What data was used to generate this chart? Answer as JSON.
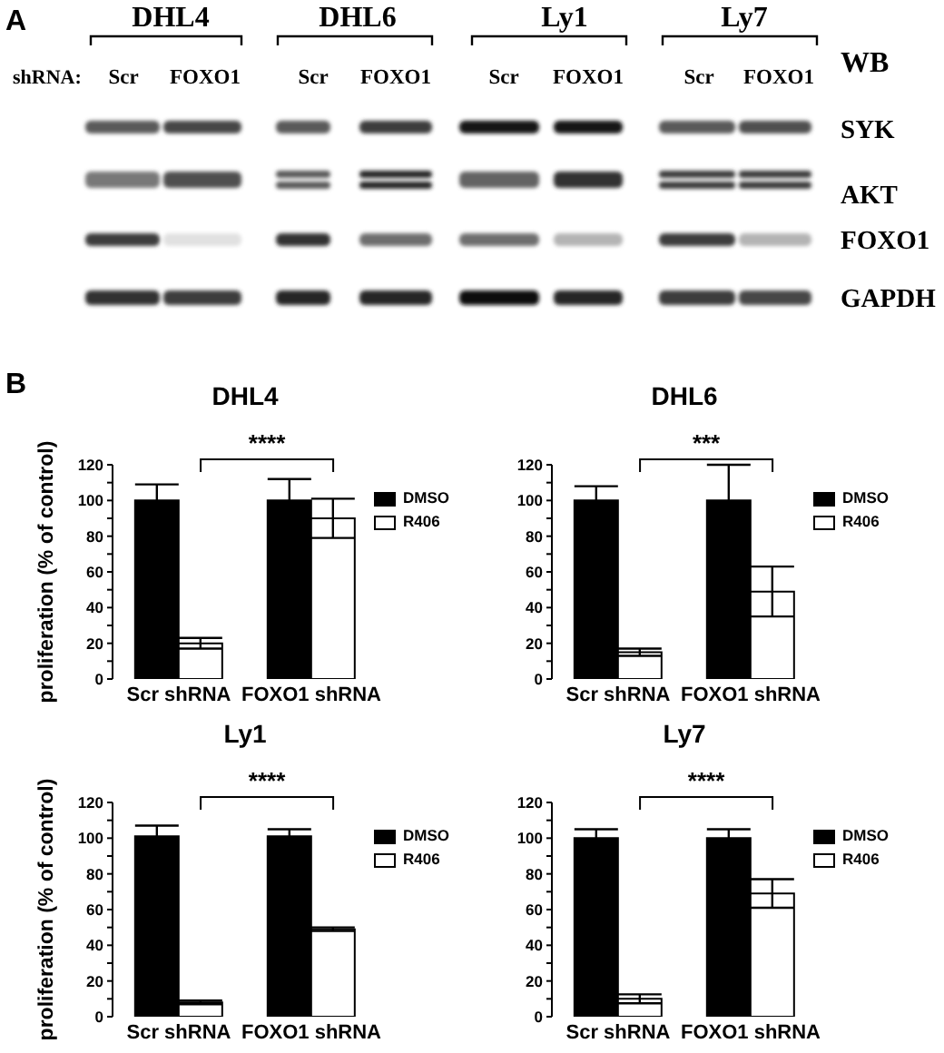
{
  "chart_data": [
    {
      "type": "other",
      "annotations": [
        "A",
        "DHL4",
        "DHL6",
        "Ly1",
        "Ly7",
        "shRNA:",
        "Scr",
        "FOXO1",
        "Scr",
        "FOXO1",
        "Scr",
        "FOXO1",
        "Scr",
        "FOXO1",
        "WB",
        "SYK",
        "AKT",
        "FOXO1",
        "GAPDH"
      ]
    },
    {
      "type": "bar",
      "title": "DHL4",
      "ylabel": "proliferation (% of control)",
      "categories": [
        "Scr shRNA",
        "FOXO1 shRNA"
      ],
      "series": [
        {
          "name": "DMSO",
          "color": "#000000",
          "values": [
            100,
            100
          ],
          "errors": [
            9,
            12
          ]
        },
        {
          "name": "R406",
          "color": "#ffffff",
          "values": [
            20,
            90
          ],
          "errors": [
            3,
            11
          ]
        }
      ],
      "ylim": [
        0,
        120
      ],
      "yticks": [
        0,
        {
          "value": 10,
          "label": null
        },
        20,
        {
          "value": 30,
          "label": null
        },
        40,
        {
          "value": 50,
          "label": null
        },
        60,
        {
          "value": 70,
          "label": null
        },
        80,
        {
          "value": 90,
          "label": null
        },
        100,
        {
          "value": 110,
          "label": null
        },
        120
      ],
      "legend": "right",
      "annotations": [
        "****",
        "B"
      ]
    },
    {
      "type": "bar",
      "title": "DHL6",
      "categories": [
        "Scr shRNA",
        "FOXO1 shRNA"
      ],
      "series": [
        {
          "name": "DMSO",
          "color": "#000000",
          "values": [
            100,
            100
          ],
          "errors": [
            8,
            20
          ]
        },
        {
          "name": "R406",
          "color": "#ffffff",
          "values": [
            15,
            49
          ],
          "errors": [
            2,
            14
          ]
        }
      ],
      "ylim": [
        0,
        120
      ],
      "yticks": [
        0,
        {
          "value": 10,
          "label": null
        },
        20,
        {
          "value": 30,
          "label": null
        },
        40,
        {
          "value": 50,
          "label": null
        },
        60,
        {
          "value": 70,
          "label": null
        },
        80,
        {
          "value": 90,
          "label": null
        },
        100,
        {
          "value": 110,
          "label": null
        },
        120
      ],
      "legend": "right",
      "annotations": [
        "***"
      ]
    },
    {
      "type": "bar",
      "title": "Ly1",
      "ylabel": "proliferation (% of control)",
      "categories": [
        "Scr shRNA",
        "FOXO1 shRNA"
      ],
      "series": [
        {
          "name": "DMSO",
          "color": "#000000",
          "values": [
            101,
            101
          ],
          "errors": [
            6,
            4
          ]
        },
        {
          "name": "R406",
          "color": "#ffffff",
          "values": [
            8,
            49
          ],
          "errors": [
            1,
            1
          ]
        }
      ],
      "ylim": [
        0,
        120
      ],
      "yticks": [
        0,
        {
          "value": 10,
          "label": null
        },
        20,
        {
          "value": 30,
          "label": null
        },
        40,
        {
          "value": 50,
          "label": null
        },
        60,
        {
          "value": 70,
          "label": null
        },
        80,
        {
          "value": 90,
          "label": null
        },
        100,
        {
          "value": 110,
          "label": null
        },
        120
      ],
      "legend": "right",
      "annotations": [
        "****"
      ]
    },
    {
      "type": "bar",
      "title": "Ly7",
      "categories": [
        "Scr shRNA",
        "FOXO1 shRNA"
      ],
      "series": [
        {
          "name": "DMSO",
          "color": "#000000",
          "values": [
            100,
            100
          ],
          "errors": [
            5,
            5
          ]
        },
        {
          "name": "R406",
          "color": "#ffffff",
          "values": [
            10,
            69
          ],
          "errors": [
            2.5,
            8
          ]
        }
      ],
      "ylim": [
        0,
        120
      ],
      "yticks": [
        0,
        {
          "value": 10,
          "label": null
        },
        20,
        {
          "value": 30,
          "label": null
        },
        40,
        {
          "value": 50,
          "label": null
        },
        60,
        {
          "value": 70,
          "label": null
        },
        80,
        {
          "value": 90,
          "label": null
        },
        100,
        {
          "value": 110,
          "label": null
        },
        120
      ],
      "legend": "right",
      "annotations": [
        "****"
      ]
    }
  ]
}
